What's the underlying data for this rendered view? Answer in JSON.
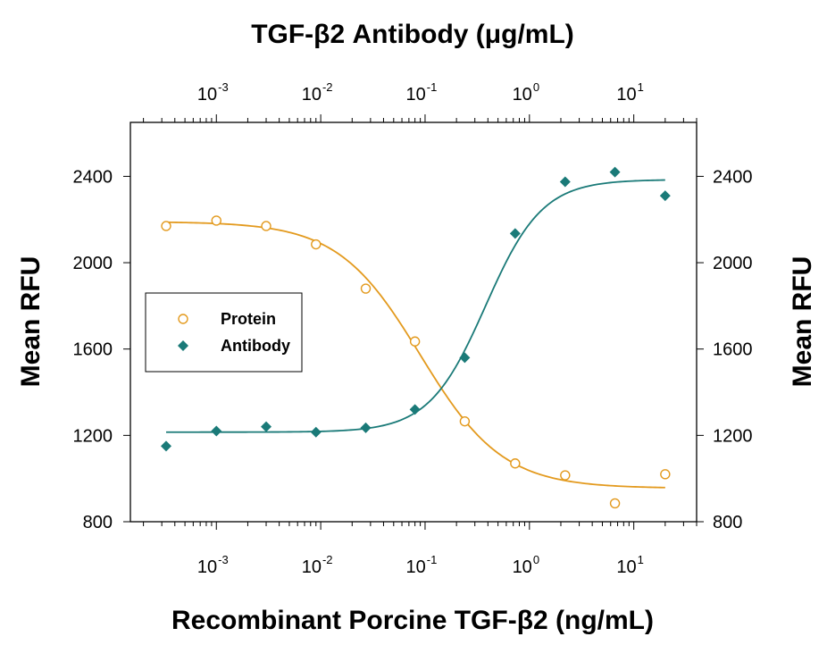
{
  "chart_data": {
    "type": "scatter",
    "title": "",
    "top_xlabel": "TGF-β2 Antibody (μg/mL)",
    "xlabel": "Recombinant Porcine TGF-β2 (ng/mL)",
    "ylabel": "Mean RFU",
    "ylabel_right": "Mean RFU",
    "x_scale": "log",
    "xlim": [
      0.00015,
      40
    ],
    "ylim": [
      800,
      2650
    ],
    "y_ticks": [
      800,
      1200,
      1600,
      2000,
      2400
    ],
    "y_tick_labels": [
      "800",
      "1200",
      "1600",
      "2000",
      "2400"
    ],
    "x_tick_labels": [
      {
        "value": 0.001,
        "base": "10",
        "exp": "-3"
      },
      {
        "value": 0.01,
        "base": "10",
        "exp": "-2"
      },
      {
        "value": 0.1,
        "base": "10",
        "exp": "-1"
      },
      {
        "value": 1,
        "base": "10",
        "exp": "0"
      },
      {
        "value": 10,
        "base": "10",
        "exp": "1"
      }
    ],
    "legend_position": "center-left",
    "series": [
      {
        "name": "Protein",
        "marker": "open-circle",
        "color": "#E39A1E",
        "x": [
          0.00033,
          0.001,
          0.003,
          0.009,
          0.027,
          0.08,
          0.24,
          0.73,
          2.2,
          6.6,
          20
        ],
        "y": [
          2170,
          2195,
          2170,
          2085,
          1880,
          1635,
          1265,
          1070,
          1015,
          885,
          1020
        ],
        "fit": {
          "bottom": 955,
          "top": 2190,
          "ec50": 0.09,
          "hill": 1.1
        }
      },
      {
        "name": "Antibody",
        "marker": "filled-diamond",
        "color": "#1A7A78",
        "x": [
          0.00033,
          0.001,
          0.003,
          0.009,
          0.027,
          0.08,
          0.24,
          0.73,
          2.2,
          6.6,
          20
        ],
        "y": [
          1150,
          1220,
          1240,
          1215,
          1235,
          1320,
          1560,
          2135,
          2375,
          2420,
          2310
        ],
        "fit": {
          "bottom": 1215,
          "top": 2385,
          "ec50": 0.38,
          "hill": 1.6
        }
      }
    ]
  }
}
